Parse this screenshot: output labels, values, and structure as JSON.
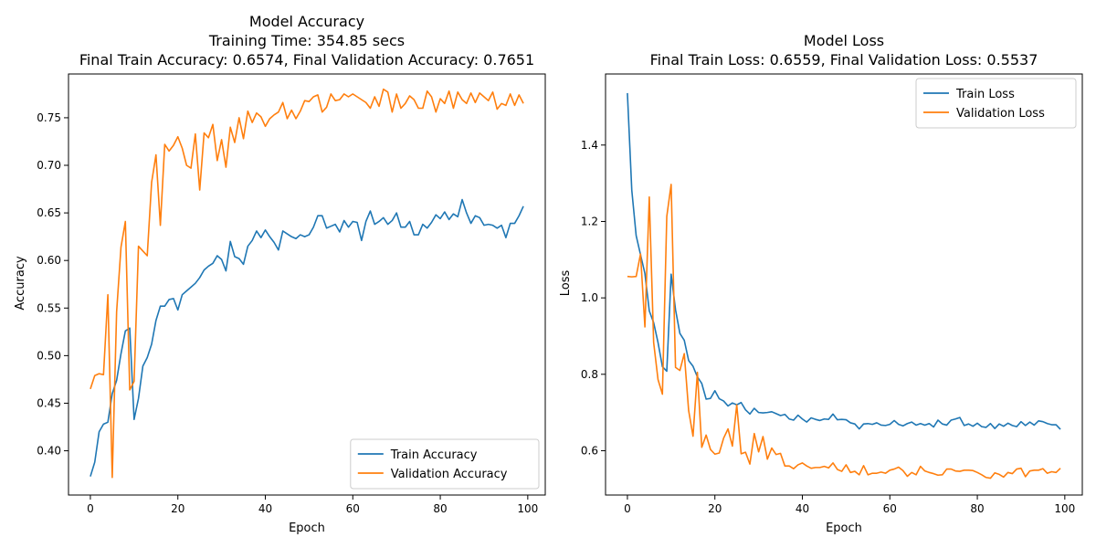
{
  "colors": {
    "train": "#1f77b4",
    "validation": "#ff7f0e",
    "axis": "#000000",
    "legend_border": "#cccccc"
  },
  "chart_data": [
    {
      "type": "line",
      "title_lines": [
        "Model Accuracy",
        "Training Time: 354.85 secs",
        "Final Train Accuracy: 0.6574, Final Validation Accuracy: 0.7651"
      ],
      "xlabel": "Epoch",
      "ylabel": "Accuracy",
      "xlim": [
        -5,
        104
      ],
      "ylim": [
        0.3535,
        0.796
      ],
      "xticks": [
        0,
        20,
        40,
        60,
        80,
        100
      ],
      "yticks": [
        0.4,
        0.45,
        0.5,
        0.55,
        0.6,
        0.65,
        0.7,
        0.75
      ],
      "ytick_labels": [
        "0.40",
        "0.45",
        "0.50",
        "0.55",
        "0.60",
        "0.65",
        "0.70",
        "0.75"
      ],
      "legend_position": "lower-right",
      "series": [
        {
          "name": "Train Accuracy",
          "color_key": "train",
          "values": [
            0.373,
            0.388,
            0.42,
            0.428,
            0.43,
            0.46,
            0.474,
            0.502,
            0.526,
            0.529,
            0.433,
            0.455,
            0.489,
            0.498,
            0.512,
            0.537,
            0.552,
            0.552,
            0.559,
            0.56,
            0.548,
            0.564,
            0.568,
            0.572,
            0.576,
            0.582,
            0.59,
            0.594,
            0.597,
            0.605,
            0.601,
            0.589,
            0.62,
            0.604,
            0.602,
            0.596,
            0.615,
            0.621,
            0.631,
            0.624,
            0.632,
            0.625,
            0.619,
            0.611,
            0.631,
            0.628,
            0.625,
            0.623,
            0.627,
            0.625,
            0.627,
            0.635,
            0.647,
            0.647,
            0.634,
            0.636,
            0.638,
            0.63,
            0.642,
            0.635,
            0.641,
            0.64,
            0.621,
            0.641,
            0.652,
            0.638,
            0.641,
            0.645,
            0.638,
            0.642,
            0.65,
            0.635,
            0.635,
            0.641,
            0.627,
            0.627,
            0.638,
            0.634,
            0.64,
            0.648,
            0.644,
            0.651,
            0.643,
            0.649,
            0.646,
            0.664,
            0.65,
            0.639,
            0.647,
            0.645,
            0.637,
            0.638,
            0.637,
            0.634,
            0.637,
            0.624,
            0.639,
            0.639,
            0.647,
            0.657
          ]
        },
        {
          "name": "Validation Accuracy",
          "color_key": "validation",
          "values": [
            0.465,
            0.479,
            0.481,
            0.48,
            0.564,
            0.372,
            0.546,
            0.614,
            0.641,
            0.464,
            0.473,
            0.615,
            0.61,
            0.605,
            0.682,
            0.711,
            0.637,
            0.722,
            0.715,
            0.721,
            0.73,
            0.718,
            0.7,
            0.697,
            0.733,
            0.674,
            0.734,
            0.729,
            0.743,
            0.705,
            0.727,
            0.698,
            0.74,
            0.724,
            0.75,
            0.728,
            0.757,
            0.745,
            0.755,
            0.751,
            0.741,
            0.749,
            0.753,
            0.756,
            0.766,
            0.749,
            0.758,
            0.749,
            0.757,
            0.768,
            0.767,
            0.772,
            0.774,
            0.756,
            0.761,
            0.775,
            0.768,
            0.769,
            0.775,
            0.772,
            0.775,
            0.772,
            0.769,
            0.766,
            0.76,
            0.772,
            0.762,
            0.78,
            0.777,
            0.756,
            0.775,
            0.76,
            0.765,
            0.773,
            0.769,
            0.76,
            0.76,
            0.778,
            0.772,
            0.756,
            0.77,
            0.765,
            0.778,
            0.76,
            0.777,
            0.769,
            0.765,
            0.776,
            0.766,
            0.776,
            0.772,
            0.768,
            0.777,
            0.759,
            0.765,
            0.763,
            0.775,
            0.763,
            0.774,
            0.765
          ]
        }
      ]
    },
    {
      "type": "line",
      "title_lines": [
        "Model Loss",
        "Final Train Loss: 0.6559, Final Validation Loss: 0.5537"
      ],
      "xlabel": "Epoch",
      "ylabel": "Loss",
      "xlim": [
        -5,
        104
      ],
      "ylim": [
        0.484,
        1.586
      ],
      "xticks": [
        0,
        20,
        40,
        60,
        80,
        100
      ],
      "yticks": [
        0.6,
        0.8,
        1.0,
        1.2,
        1.4
      ],
      "ytick_labels": [
        "0.6",
        "0.8",
        "1.0",
        "1.2",
        "1.4"
      ],
      "legend_position": "upper-right",
      "series": [
        {
          "name": "Train Loss",
          "color_key": "train",
          "values": [
            1.536,
            1.282,
            1.163,
            1.113,
            1.064,
            0.966,
            0.935,
            0.883,
            0.82,
            0.808,
            1.062,
            0.969,
            0.907,
            0.889,
            0.836,
            0.821,
            0.793,
            0.776,
            0.735,
            0.737,
            0.757,
            0.736,
            0.73,
            0.717,
            0.725,
            0.72,
            0.726,
            0.707,
            0.696,
            0.711,
            0.7,
            0.699,
            0.7,
            0.702,
            0.697,
            0.692,
            0.695,
            0.683,
            0.68,
            0.693,
            0.683,
            0.675,
            0.686,
            0.682,
            0.679,
            0.683,
            0.682,
            0.696,
            0.681,
            0.682,
            0.681,
            0.673,
            0.67,
            0.657,
            0.67,
            0.671,
            0.669,
            0.673,
            0.667,
            0.666,
            0.669,
            0.679,
            0.669,
            0.665,
            0.671,
            0.675,
            0.667,
            0.671,
            0.667,
            0.671,
            0.662,
            0.68,
            0.67,
            0.667,
            0.68,
            0.683,
            0.687,
            0.666,
            0.67,
            0.664,
            0.672,
            0.663,
            0.661,
            0.671,
            0.658,
            0.67,
            0.664,
            0.672,
            0.666,
            0.663,
            0.676,
            0.666,
            0.675,
            0.667,
            0.678,
            0.676,
            0.671,
            0.668,
            0.668,
            0.656
          ]
        },
        {
          "name": "Validation Loss",
          "color_key": "validation",
          "values": [
            1.056,
            1.055,
            1.056,
            1.115,
            0.924,
            1.264,
            0.883,
            0.786,
            0.748,
            1.213,
            1.297,
            0.818,
            0.81,
            0.854,
            0.705,
            0.638,
            0.805,
            0.609,
            0.641,
            0.603,
            0.591,
            0.594,
            0.633,
            0.657,
            0.612,
            0.72,
            0.592,
            0.596,
            0.565,
            0.645,
            0.597,
            0.637,
            0.578,
            0.607,
            0.59,
            0.593,
            0.56,
            0.56,
            0.553,
            0.563,
            0.568,
            0.56,
            0.554,
            0.556,
            0.556,
            0.559,
            0.555,
            0.568,
            0.551,
            0.546,
            0.563,
            0.543,
            0.546,
            0.537,
            0.561,
            0.537,
            0.541,
            0.541,
            0.544,
            0.541,
            0.549,
            0.552,
            0.557,
            0.548,
            0.533,
            0.543,
            0.537,
            0.559,
            0.547,
            0.543,
            0.54,
            0.536,
            0.537,
            0.552,
            0.552,
            0.547,
            0.546,
            0.549,
            0.549,
            0.548,
            0.543,
            0.537,
            0.53,
            0.528,
            0.542,
            0.538,
            0.531,
            0.543,
            0.54,
            0.552,
            0.554,
            0.532,
            0.547,
            0.549,
            0.549,
            0.553,
            0.541,
            0.545,
            0.543,
            0.554
          ]
        }
      ]
    }
  ]
}
